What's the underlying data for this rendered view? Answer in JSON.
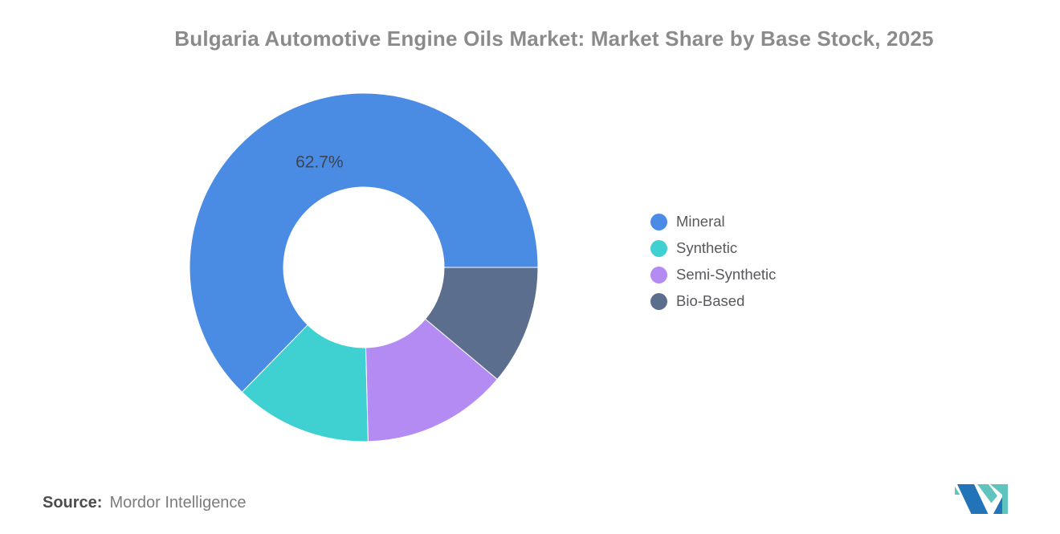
{
  "chart_data": {
    "type": "pie",
    "subtype": "donut",
    "title": "Bulgaria Automotive Engine Oils Market: Market Share by Base Stock, 2025",
    "categories": [
      "Mineral",
      "Synthetic",
      "Semi-Synthetic",
      "Bio-Based"
    ],
    "values": [
      62.7,
      12.7,
      13.5,
      11.1
    ],
    "colors": [
      "#4A8BE3",
      "#3FD0D2",
      "#B38BF2",
      "#5C6E8E"
    ],
    "data_labels": [
      "62.7%",
      "",
      "",
      ""
    ],
    "start_angle_deg": 0,
    "direction": "counterclockwise",
    "inner_radius_ratio": 0.46,
    "legend_position": "right",
    "grid": false
  },
  "footer": {
    "source_label": "Source:",
    "source_text": "Mordor Intelligence"
  },
  "logo": {
    "name": "mordor-intelligence-logo",
    "teal": "#5FC4BD",
    "blue": "#2273B8"
  },
  "label_text_color": "#3f444e",
  "slice_border_color": "#FFFFFF"
}
